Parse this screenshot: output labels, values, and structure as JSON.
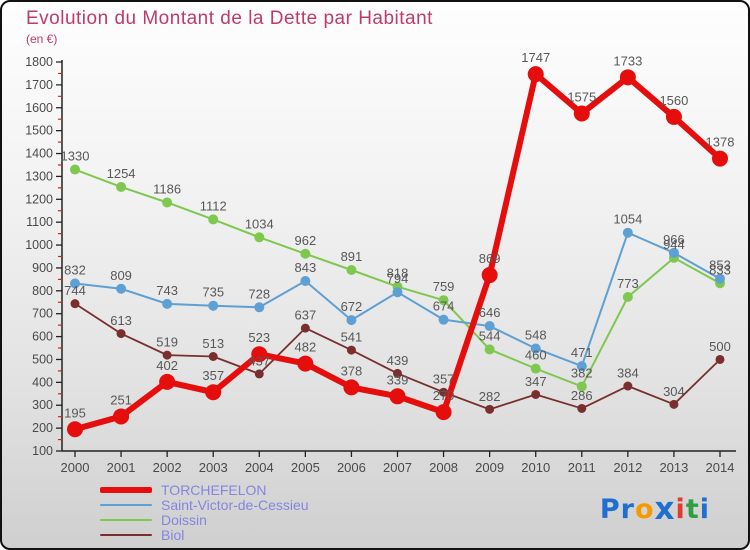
{
  "title": "Evolution du Montant de la Dette par Habitant",
  "subtitle": "(en €)",
  "colors": {
    "title": "#c03a68",
    "legend_text": "#8585e0",
    "axis": "#222222",
    "minor_tick": "#cc2222",
    "tick_label": "#4a4a4a",
    "point_label": "#585858"
  },
  "chart_data": {
    "type": "line",
    "x": [
      2000,
      2001,
      2002,
      2003,
      2004,
      2005,
      2006,
      2007,
      2008,
      2009,
      2010,
      2011,
      2012,
      2013,
      2014
    ],
    "series": [
      {
        "name": "TORCHEFELON",
        "color": "#e60d0d",
        "line_width": 6,
        "dot_radius": 8,
        "values": [
          195,
          251,
          402,
          357,
          523,
          482,
          378,
          339,
          270,
          869,
          1747,
          1575,
          1733,
          1560,
          1378
        ]
      },
      {
        "name": "Saint-Victor-de-Cessieu",
        "color": "#5e9fd4",
        "line_width": 2,
        "dot_radius": 5,
        "values": [
          832,
          809,
          743,
          735,
          728,
          843,
          672,
          794,
          674,
          646,
          548,
          471,
          1054,
          966,
          853
        ]
      },
      {
        "name": "Doissin",
        "color": "#7ec850",
        "line_width": 2,
        "dot_radius": 5,
        "values": [
          1330,
          1254,
          1186,
          1112,
          1034,
          962,
          891,
          818,
          759,
          544,
          460,
          382,
          773,
          944,
          833
        ]
      },
      {
        "name": "Biol",
        "color": "#7a2f2f",
        "line_width": 1.8,
        "dot_radius": 4.5,
        "values": [
          744,
          613,
          519,
          513,
          437,
          637,
          541,
          439,
          357,
          282,
          347,
          286,
          384,
          304,
          500
        ]
      }
    ],
    "ylim": [
      100,
      1800
    ],
    "ytick_step": 100,
    "grid": false,
    "legend_position": "bottom-left",
    "draw_order": [
      2,
      1,
      3,
      0
    ]
  },
  "logo": {
    "name": "Proxiti",
    "letters": [
      {
        "ch": "P",
        "color": "#1f6fd0"
      },
      {
        "ch": "r",
        "color": "#1f6fd0"
      },
      {
        "ch": "o",
        "color": "#f59a00"
      },
      {
        "ch": "x",
        "color": "#1f6fd0",
        "big": true
      },
      {
        "ch": "i",
        "color": "#e23b2e"
      },
      {
        "ch": "t",
        "color": "#2ea043"
      },
      {
        "ch": "i",
        "color": "#1f6fd0"
      }
    ]
  }
}
